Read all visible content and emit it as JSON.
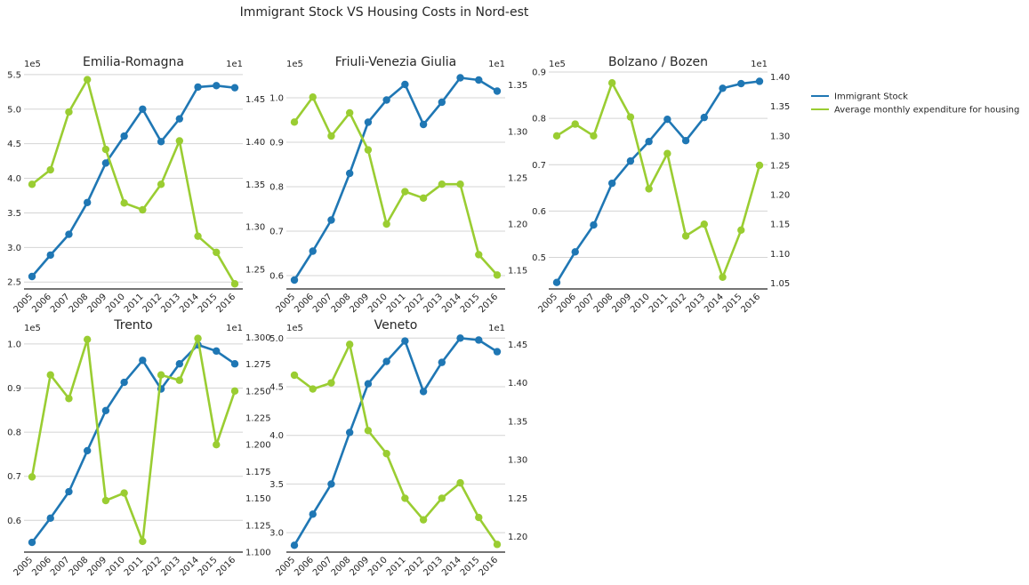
{
  "figure_title": "Immigrant Stock VS Housing Costs in Nord-est",
  "legend": {
    "placement": "right",
    "entries": [
      {
        "label": "Immigrant Stock",
        "color": "#1f77b4"
      },
      {
        "label": "Average monthly expenditure for housing",
        "color": "#9acd32"
      }
    ]
  },
  "colors": {
    "immigrant_stock": "#1f77b4",
    "housing": "#9acd32"
  },
  "chart_data": [
    {
      "type": "line",
      "title": "Emilia-Romagna",
      "x": [
        "2005",
        "2006",
        "2007",
        "2008",
        "2009",
        "2010",
        "2011",
        "2012",
        "2013",
        "2014",
        "2015",
        "2016"
      ],
      "grid": "left-axis horizontal",
      "left_axis": {
        "offset_label": "1e5",
        "lim": [
          2.4,
          5.55
        ],
        "ticks": [
          2.5,
          3.0,
          3.5,
          4.0,
          4.5,
          5.0,
          5.5
        ],
        "tick_labels": [
          "2.5",
          "3.0",
          "3.5",
          "4.0",
          "4.5",
          "5.0",
          "5.5"
        ]
      },
      "right_axis": {
        "offset_label": "1e1",
        "lim": [
          1.227,
          1.483
        ],
        "ticks": [
          1.25,
          1.3,
          1.35,
          1.4,
          1.45
        ],
        "tick_labels": [
          "1.25",
          "1.30",
          "1.35",
          "1.40",
          "1.45"
        ]
      },
      "series": [
        {
          "name": "Immigrant Stock",
          "axis": "left",
          "values": [
            2.58,
            2.89,
            3.19,
            3.65,
            4.22,
            4.61,
            5.0,
            4.53,
            4.86,
            5.32,
            5.34,
            5.31
          ]
        },
        {
          "name": "Average monthly expenditure for housing",
          "axis": "right",
          "values": [
            1.35,
            1.367,
            1.435,
            1.473,
            1.391,
            1.328,
            1.32,
            1.35,
            1.401,
            1.289,
            1.27,
            1.233
          ]
        }
      ]
    },
    {
      "type": "line",
      "title": "Friuli-Venezia Giulia",
      "x": [
        "2005",
        "2006",
        "2007",
        "2008",
        "2009",
        "2010",
        "2011",
        "2012",
        "2013",
        "2014",
        "2015",
        "2016"
      ],
      "grid": "left-axis horizontal",
      "left_axis": {
        "offset_label": "1e5",
        "lim": [
          0.57,
          1.06
        ],
        "ticks": [
          0.6,
          0.7,
          0.8,
          0.9,
          1.0
        ],
        "tick_labels": [
          "0.6",
          "0.7",
          "0.8",
          "0.9",
          "1.0"
        ]
      },
      "right_axis": {
        "offset_label": "1e1",
        "lim": [
          1.13,
          1.365
        ],
        "ticks": [
          1.15,
          1.2,
          1.25,
          1.3,
          1.35
        ],
        "tick_labels": [
          "1.15",
          "1.20",
          "1.25",
          "1.30",
          "1.35"
        ]
      },
      "series": [
        {
          "name": "Immigrant Stock",
          "axis": "left",
          "values": [
            0.59,
            0.655,
            0.725,
            0.83,
            0.945,
            0.995,
            1.03,
            0.94,
            0.99,
            1.045,
            1.04,
            1.015
          ]
        },
        {
          "name": "Average monthly expenditure for housing",
          "axis": "right",
          "values": [
            1.31,
            1.337,
            1.295,
            1.32,
            1.28,
            1.2,
            1.235,
            1.228,
            1.243,
            1.243,
            1.167,
            1.145
          ]
        }
      ]
    },
    {
      "type": "line",
      "title": "Bolzano / Bozen",
      "x": [
        "2005",
        "2006",
        "2007",
        "2008",
        "2009",
        "2010",
        "2011",
        "2012",
        "2013",
        "2014",
        "2015",
        "2016"
      ],
      "grid": "left-axis horizontal",
      "left_axis": {
        "offset_label": "1e5",
        "lim": [
          0.432,
          0.902
        ],
        "ticks": [
          0.5,
          0.6,
          0.7,
          0.8,
          0.9
        ],
        "tick_labels": [
          "0.5",
          "0.6",
          "0.7",
          "0.8",
          "0.9"
        ]
      },
      "right_axis": {
        "offset_label": "1e1",
        "lim": [
          1.04,
          1.41
        ],
        "ticks": [
          1.05,
          1.1,
          1.15,
          1.2,
          1.25,
          1.3,
          1.35,
          1.4
        ],
        "tick_labels": [
          "1.05",
          "1.10",
          "1.15",
          "1.20",
          "1.25",
          "1.30",
          "1.35",
          "1.40"
        ]
      },
      "series": [
        {
          "name": "Immigrant Stock",
          "axis": "left",
          "values": [
            0.446,
            0.512,
            0.57,
            0.66,
            0.708,
            0.75,
            0.798,
            0.752,
            0.802,
            0.865,
            0.875,
            0.88
          ]
        },
        {
          "name": "Average monthly expenditure for housing",
          "axis": "right",
          "values": [
            1.3,
            1.32,
            1.3,
            1.39,
            1.332,
            1.21,
            1.27,
            1.13,
            1.15,
            1.06,
            1.14,
            1.25
          ]
        }
      ]
    },
    {
      "type": "line",
      "title": "Trento",
      "x": [
        "2005",
        "2006",
        "2007",
        "2008",
        "2009",
        "2010",
        "2011",
        "2012",
        "2013",
        "2014",
        "2015",
        "2016"
      ],
      "grid": "left-axis horizontal",
      "left_axis": {
        "offset_label": "1e5",
        "lim": [
          0.528,
          1.02
        ],
        "ticks": [
          0.6,
          0.7,
          0.8,
          0.9,
          1.0
        ],
        "tick_labels": [
          "0.6",
          "0.7",
          "0.8",
          "0.9",
          "1.0"
        ]
      },
      "right_axis": {
        "offset_label": "1e1",
        "lim": [
          1.1,
          1.302
        ],
        "ticks": [
          1.1,
          1.125,
          1.15,
          1.175,
          1.2,
          1.225,
          1.25,
          1.275,
          1.3
        ],
        "tick_labels": [
          "1.100",
          "1.125",
          "1.150",
          "1.175",
          "1.200",
          "1.225",
          "1.250",
          "1.275",
          "1.300"
        ]
      },
      "series": [
        {
          "name": "Immigrant Stock",
          "axis": "left",
          "values": [
            0.55,
            0.605,
            0.665,
            0.758,
            0.849,
            0.913,
            0.963,
            0.898,
            0.955,
            0.998,
            0.984,
            0.955
          ]
        },
        {
          "name": "Average monthly expenditure for housing",
          "axis": "right",
          "values": [
            1.17,
            1.265,
            1.243,
            1.298,
            1.148,
            1.155,
            1.11,
            1.265,
            1.26,
            1.299,
            1.2,
            1.25
          ]
        }
      ]
    },
    {
      "type": "line",
      "title": "Veneto",
      "x": [
        "2005",
        "2006",
        "2007",
        "2008",
        "2009",
        "2010",
        "2011",
        "2012",
        "2013",
        "2014",
        "2015",
        "2016"
      ],
      "grid": "left-axis horizontal",
      "left_axis": {
        "offset_label": "1e5",
        "lim": [
          2.8,
          5.03
        ],
        "ticks": [
          3.0,
          3.5,
          4.0,
          4.5,
          5.0
        ],
        "tick_labels": [
          "3.0",
          "3.5",
          "4.0",
          "4.5",
          "5.0"
        ]
      },
      "right_axis": {
        "offset_label": "1e1",
        "lim": [
          1.18,
          1.462
        ],
        "ticks": [
          1.2,
          1.25,
          1.3,
          1.35,
          1.4,
          1.45
        ],
        "tick_labels": [
          "1.20",
          "1.25",
          "1.30",
          "1.35",
          "1.40",
          "1.45"
        ]
      },
      "series": [
        {
          "name": "Immigrant Stock",
          "axis": "left",
          "values": [
            2.87,
            3.19,
            3.5,
            4.03,
            4.53,
            4.76,
            4.97,
            4.45,
            4.75,
            5.0,
            4.98,
            4.86
          ]
        },
        {
          "name": "Average monthly expenditure for housing",
          "axis": "right",
          "values": [
            1.41,
            1.392,
            1.4,
            1.45,
            1.338,
            1.308,
            1.25,
            1.222,
            1.25,
            1.27,
            1.225,
            1.19
          ]
        }
      ]
    }
  ]
}
